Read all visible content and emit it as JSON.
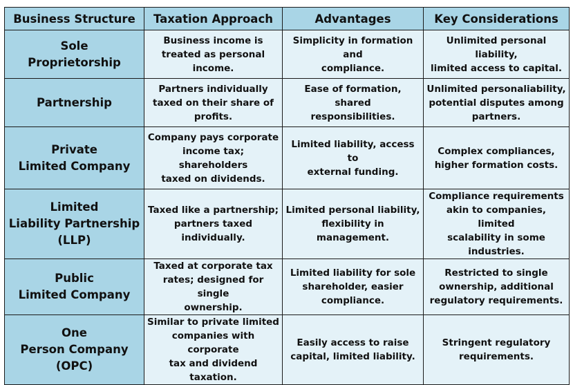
{
  "table": {
    "headers": [
      "Business Structure",
      "Taxation Approach",
      "Advantages",
      "Key Considerations"
    ],
    "rows": [
      {
        "structure": [
          "Sole",
          "Proprietorship"
        ],
        "taxation": [
          "Business income is",
          "treated as personal",
          "income."
        ],
        "advantages": [
          "Simplicity in formation",
          "and",
          "compliance."
        ],
        "considerations": [
          "Unlimited personal",
          "liability,",
          "limited access to capital."
        ]
      },
      {
        "structure": [
          "Partnership"
        ],
        "taxation": [
          "Partners individually",
          "taxed on their share of",
          "profits."
        ],
        "advantages": [
          "Ease of formation, shared",
          "responsibilities."
        ],
        "considerations": [
          "Unlimited personaliability,",
          "potential disputes among",
          "partners."
        ]
      },
      {
        "structure": [
          "Private",
          "Limited Company"
        ],
        "taxation": [
          "Company pays corporate",
          "income tax; shareholders",
          "taxed on dividends."
        ],
        "advantages": [
          "Limited liability, access to",
          "external funding."
        ],
        "considerations": [
          "Complex compliances,",
          "higher formation costs."
        ]
      },
      {
        "structure": [
          "Limited",
          "Liability Partnership",
          "(LLP)"
        ],
        "taxation": [
          "Taxed like a partnership;",
          "partners taxed",
          "individually."
        ],
        "advantages": [
          "Limited personal liability,",
          "flexibility in management."
        ],
        "considerations": [
          "Compliance requirements",
          "akin to companies, limited",
          "scalability in some",
          "industries."
        ]
      },
      {
        "structure": [
          "Public",
          "Limited Company"
        ],
        "taxation": [
          "Taxed at corporate tax",
          "rates; designed for single",
          "ownership."
        ],
        "advantages": [
          "Limited liability for sole",
          "shareholder, easier",
          "compliance."
        ],
        "considerations": [
          "Restricted to single",
          "ownership, additional",
          "regulatory requirements."
        ]
      },
      {
        "structure": [
          "One",
          "Person Company",
          "(OPC)"
        ],
        "taxation": [
          "Similar to private limited",
          "companies with corporate",
          "tax and dividend",
          "taxation."
        ],
        "advantages": [
          "Easily access to raise",
          "capital, limited liability."
        ],
        "considerations": [
          "Stringent regulatory",
          "requirements."
        ]
      }
    ]
  },
  "colors": {
    "header_bg": "#a9d5e6",
    "cell_bg": "#e4f2f8",
    "border": "#1a1a1a",
    "text": "#111111"
  }
}
